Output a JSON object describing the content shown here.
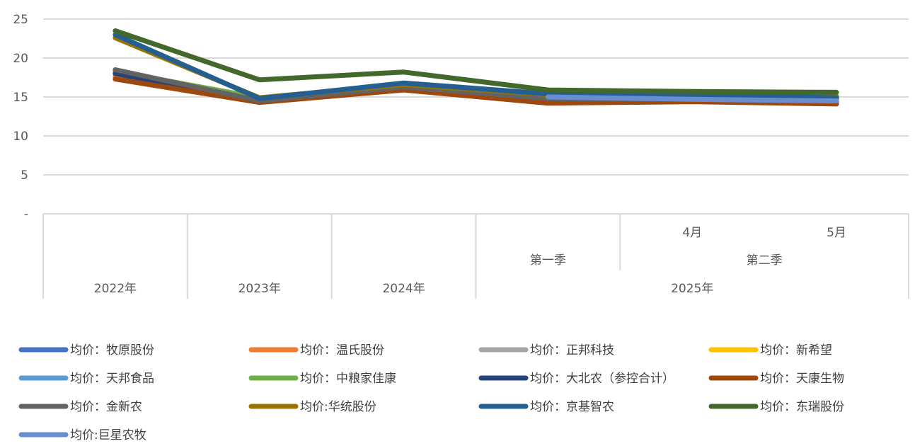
{
  "chart_data": {
    "type": "line",
    "y_ticks": [
      "-",
      "5",
      "10",
      "15",
      "20",
      "25"
    ],
    "ylim": [
      0,
      25
    ],
    "grid": true,
    "legend_position": "bottom",
    "category_levels": {
      "points": [
        "",
        "",
        "",
        "",
        "4月",
        "5月"
      ],
      "quarters": [
        {
          "label": "",
          "span": 1
        },
        {
          "label": "",
          "span": 1
        },
        {
          "label": "",
          "span": 1
        },
        {
          "label": "第一季",
          "span": 1
        },
        {
          "label": "第二季",
          "span": 2
        }
      ],
      "years": [
        {
          "label": "2022年",
          "span": 1
        },
        {
          "label": "2023年",
          "span": 1
        },
        {
          "label": "2024年",
          "span": 1
        },
        {
          "label": "2025年",
          "span": 3
        }
      ]
    },
    "series": [
      {
        "name": "均价：牧原股份",
        "color": "#4472C4",
        "values": [
          18.1,
          14.6,
          16.4,
          14.7,
          14.7,
          14.5
        ]
      },
      {
        "name": "均价：温氏股份",
        "color": "#ED7D31",
        "values": [
          17.6,
          14.5,
          16.1,
          14.5,
          14.6,
          14.4
        ]
      },
      {
        "name": "均价：正邦科技",
        "color": "#A5A5A5",
        "values": [
          18.4,
          14.6,
          16.3,
          14.9,
          14.8,
          14.6
        ]
      },
      {
        "name": "均价：新希望",
        "color": "#FFC000",
        "values": [
          18.0,
          14.8,
          16.5,
          15.3,
          15.1,
          15.0
        ]
      },
      {
        "name": "均价：天邦食品",
        "color": "#5B9BD5",
        "values": [
          18.2,
          14.7,
          16.4,
          15.0,
          14.9,
          14.8
        ]
      },
      {
        "name": "均价：中粮家佳康",
        "color": "#70AD47",
        "values": [
          18.3,
          14.9,
          16.6,
          15.4,
          15.2,
          15.1
        ]
      },
      {
        "name": "均价：大北农（参控合计）",
        "color": "#264478",
        "values": [
          18.0,
          14.4,
          16.2,
          14.6,
          14.6,
          14.4
        ]
      },
      {
        "name": "均价：天康生物",
        "color": "#9E480E",
        "values": [
          17.3,
          14.3,
          15.9,
          14.2,
          14.4,
          14.1
        ]
      },
      {
        "name": "均价：金新农",
        "color": "#636363",
        "values": [
          18.5,
          14.5,
          16.3,
          14.8,
          14.7,
          14.5
        ]
      },
      {
        "name": "均价:华统股份",
        "color": "#997300",
        "values": [
          22.6,
          14.9,
          16.6,
          15.3,
          15.2,
          15.0
        ]
      },
      {
        "name": "均价：京基智农",
        "color": "#255E91",
        "values": [
          23.0,
          14.8,
          16.8,
          15.4,
          15.3,
          14.9
        ]
      },
      {
        "name": "均价：东瑞股份",
        "color": "#43682B",
        "values": [
          23.5,
          17.2,
          18.2,
          15.9,
          15.7,
          15.6
        ]
      },
      {
        "name": "均价:巨星农牧",
        "color": "#698ED0",
        "values": [
          null,
          null,
          null,
          15.0,
          14.7,
          14.5
        ]
      }
    ]
  }
}
